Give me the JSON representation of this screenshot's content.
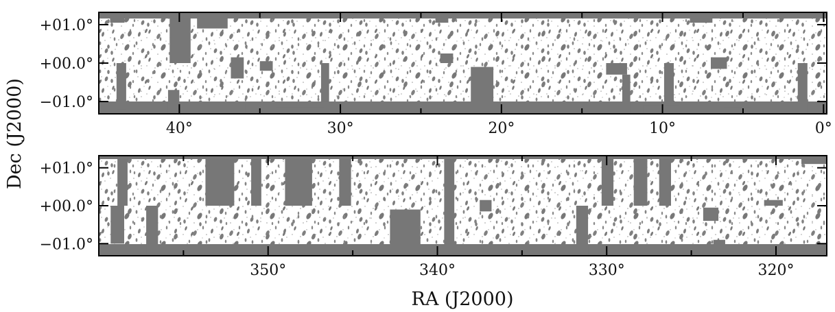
{
  "figure": {
    "ylabel": "Dec (J2000)",
    "xlabel": "RA (J2000)",
    "mask_color": "#777777",
    "footprint_color": "#ffffff",
    "hole_color": "#888888"
  },
  "chart_data": [
    {
      "type": "heatmap",
      "name": "",
      "x_ticks": [
        "40°",
        "30°",
        "20°",
        "10°",
        "0°"
      ],
      "x_tick_values": [
        40,
        30,
        20,
        10,
        0
      ],
      "xlim": [
        45.0,
        -0.2
      ],
      "y_ticks": [
        "+01.0°",
        "+00.0°",
        "−01.0°"
      ],
      "y_tick_values": [
        1.0,
        0.0,
        -1.0
      ],
      "ylim": [
        -1.32,
        1.32
      ],
      "gaps": [
        {
          "ra": [
            44.3,
            43.4
          ],
          "dec": [
            1.05,
            1.32
          ]
        },
        {
          "ra": [
            40.6,
            39.3
          ],
          "dec": [
            0.0,
            1.32
          ]
        },
        {
          "ra": [
            38.9,
            37.0
          ],
          "dec": [
            0.9,
            1.32
          ]
        },
        {
          "ra": [
            43.9,
            43.3
          ],
          "dec": [
            -1.2,
            0.0
          ]
        },
        {
          "ra": [
            40.7,
            40.0
          ],
          "dec": [
            -1.32,
            -0.7
          ]
        },
        {
          "ra": [
            38.7,
            37.8
          ],
          "dec": [
            -1.32,
            -1.0
          ]
        },
        {
          "ra": [
            36.8,
            36.0
          ],
          "dec": [
            -0.4,
            0.15
          ]
        },
        {
          "ra": [
            36.9,
            35.9
          ],
          "dec": [
            -1.32,
            -1.05
          ]
        },
        {
          "ra": [
            35.0,
            34.2
          ],
          "dec": [
            -0.2,
            0.05
          ]
        },
        {
          "ra": [
            31.2,
            30.7
          ],
          "dec": [
            -1.0,
            0.0
          ]
        },
        {
          "ra": [
            34.0,
            31.0
          ],
          "dec": [
            -1.32,
            -1.15
          ]
        },
        {
          "ra": [
            24.1,
            23.3
          ],
          "dec": [
            1.05,
            1.32
          ]
        },
        {
          "ra": [
            23.8,
            23.0
          ],
          "dec": [
            0.0,
            0.25
          ]
        },
        {
          "ra": [
            21.9,
            20.5
          ],
          "dec": [
            -1.32,
            -0.1
          ]
        },
        {
          "ra": [
            13.5,
            12.2
          ],
          "dec": [
            -0.3,
            0.0
          ]
        },
        {
          "ra": [
            12.5,
            12.0
          ],
          "dec": [
            -1.32,
            -0.3
          ]
        },
        {
          "ra": [
            9.9,
            9.3
          ],
          "dec": [
            -1.32,
            0.0
          ]
        },
        {
          "ra": [
            11.2,
            9.0
          ],
          "dec": [
            -1.32,
            -1.1
          ]
        },
        {
          "ra": [
            8.3,
            6.9
          ],
          "dec": [
            1.05,
            1.32
          ]
        },
        {
          "ra": [
            7.0,
            6.0
          ],
          "dec": [
            -0.15,
            0.15
          ]
        },
        {
          "ra": [
            6.2,
            4.5
          ],
          "dec": [
            -1.32,
            -1.15
          ]
        },
        {
          "ra": [
            1.6,
            1.0
          ],
          "dec": [
            -1.32,
            0.0
          ]
        },
        {
          "ra": [
            0.6,
            -0.2
          ],
          "dec": [
            -1.32,
            -1.2
          ]
        }
      ]
    },
    {
      "type": "heatmap",
      "name": "",
      "x_ticks": [
        "350°",
        "340°",
        "330°",
        "320°"
      ],
      "x_tick_values": [
        350,
        340,
        330,
        320
      ],
      "xlim": [
        360.0,
        317.0
      ],
      "y_ticks": [
        "+01.0°",
        "+00.0°",
        "−01.0°"
      ],
      "y_tick_values": [
        1.0,
        0.0,
        -1.0
      ],
      "ylim": [
        -1.32,
        1.32
      ],
      "gaps": [
        {
          "ra": [
            358.9,
            358.3
          ],
          "dec": [
            0.0,
            1.32
          ]
        },
        {
          "ra": [
            359.3,
            358.5
          ],
          "dec": [
            -1.0,
            0.0
          ]
        },
        {
          "ra": [
            357.2,
            356.5
          ],
          "dec": [
            -1.32,
            0.0
          ]
        },
        {
          "ra": [
            353.7,
            352.0
          ],
          "dec": [
            0.0,
            1.32
          ]
        },
        {
          "ra": [
            351.0,
            350.4
          ],
          "dec": [
            0.0,
            1.32
          ]
        },
        {
          "ra": [
            349.0,
            347.4
          ],
          "dec": [
            0.0,
            1.32
          ]
        },
        {
          "ra": [
            345.8,
            345.1
          ],
          "dec": [
            0.0,
            1.32
          ]
        },
        {
          "ra": [
            342.8,
            341.0
          ],
          "dec": [
            -1.32,
            -0.1
          ]
        },
        {
          "ra": [
            339.6,
            339.0
          ],
          "dec": [
            -1.32,
            1.32
          ]
        },
        {
          "ra": [
            337.5,
            336.8
          ],
          "dec": [
            -0.15,
            0.15
          ]
        },
        {
          "ra": [
            331.8,
            331.1
          ],
          "dec": [
            -1.32,
            0.0
          ]
        },
        {
          "ra": [
            330.3,
            329.6
          ],
          "dec": [
            0.0,
            1.32
          ]
        },
        {
          "ra": [
            328.4,
            327.6
          ],
          "dec": [
            0.0,
            1.32
          ]
        },
        {
          "ra": [
            326.9,
            326.2
          ],
          "dec": [
            0.0,
            1.32
          ]
        },
        {
          "ra": [
            324.3,
            323.4
          ],
          "dec": [
            -0.4,
            -0.05
          ]
        },
        {
          "ra": [
            323.7,
            323.0
          ],
          "dec": [
            -1.32,
            -0.9
          ]
        },
        {
          "ra": [
            320.7,
            319.6
          ],
          "dec": [
            0.0,
            0.15
          ]
        },
        {
          "ra": [
            318.5,
            317.0
          ],
          "dec": [
            1.1,
            1.32
          ]
        }
      ]
    }
  ]
}
